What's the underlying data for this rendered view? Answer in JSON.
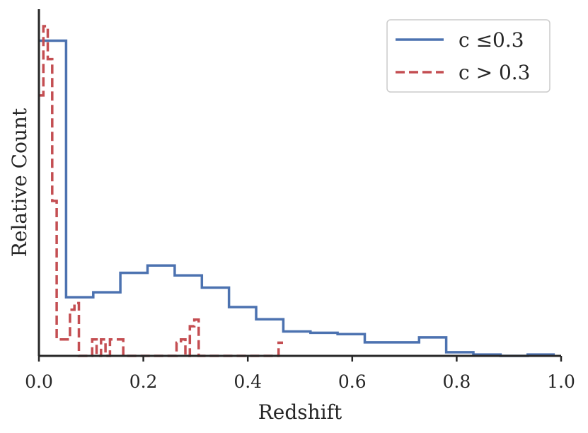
{
  "chart_data": {
    "type": "step",
    "title": "",
    "xlabel": "Redshift",
    "ylabel": "Relative Count",
    "xlim": [
      0.0,
      1.0
    ],
    "ylim": [
      0,
      100
    ],
    "xticks": [
      0.0,
      0.2,
      0.4,
      0.6,
      0.8,
      1.0
    ],
    "xtick_labels": [
      "0.0",
      "0.2",
      "0.4",
      "0.6",
      "0.8",
      "1.0"
    ],
    "y_tick_labels_shown": false,
    "legend_position": "top-right",
    "series": [
      {
        "name": "c ≤0.3",
        "legend_label": "c  ≤0.3",
        "color": "#4c72b0",
        "dash": "solid",
        "edges": [
          0.0,
          0.052,
          0.104,
          0.156,
          0.208,
          0.26,
          0.312,
          0.364,
          0.416,
          0.468,
          0.52,
          0.572,
          0.624,
          0.676,
          0.728,
          0.78,
          0.832,
          0.884,
          0.936,
          0.988
        ],
        "values": [
          95.6,
          17.8,
          19.3,
          25.2,
          27.4,
          24.4,
          20.7,
          14.8,
          11.1,
          7.4,
          7.0,
          6.6,
          4.1,
          4.1,
          5.6,
          1.1,
          0.4,
          0.0,
          0.4
        ]
      },
      {
        "name": "c > 0.3",
        "legend_label": "c > 0.3",
        "color": "#c44e52",
        "dash": "dashed",
        "edges": [
          0.0,
          0.0085,
          0.017,
          0.0255,
          0.034,
          0.0425,
          0.051,
          0.0595,
          0.068,
          0.0765,
          0.085,
          0.0935,
          0.102,
          0.1105,
          0.119,
          0.1275,
          0.136,
          0.1445,
          0.153,
          0.1615,
          0.17,
          0.1785,
          0.187,
          0.1955,
          0.204,
          0.2125,
          0.221,
          0.2295,
          0.238,
          0.2465,
          0.255,
          0.2635,
          0.272,
          0.2805,
          0.289,
          0.2975,
          0.306,
          0.3145,
          0.323,
          0.3315,
          0.34,
          0.3485,
          0.357,
          0.3655,
          0.374,
          0.3825,
          0.391,
          0.3995,
          0.408,
          0.4165,
          0.425,
          0.4335,
          0.442,
          0.4505,
          0.459,
          0.4675
        ],
        "values": [
          79,
          100,
          90,
          47,
          5,
          5,
          5,
          14,
          16,
          0,
          0,
          0,
          5,
          0,
          5,
          0,
          5,
          5,
          5,
          0,
          0,
          0,
          0,
          0,
          0,
          0,
          0,
          0,
          0,
          0,
          0,
          4,
          5,
          0,
          9,
          11,
          0,
          0,
          0,
          0,
          0,
          0,
          0,
          0,
          0,
          0,
          0,
          0,
          0,
          0,
          0,
          0,
          0,
          0,
          4
        ]
      }
    ]
  }
}
